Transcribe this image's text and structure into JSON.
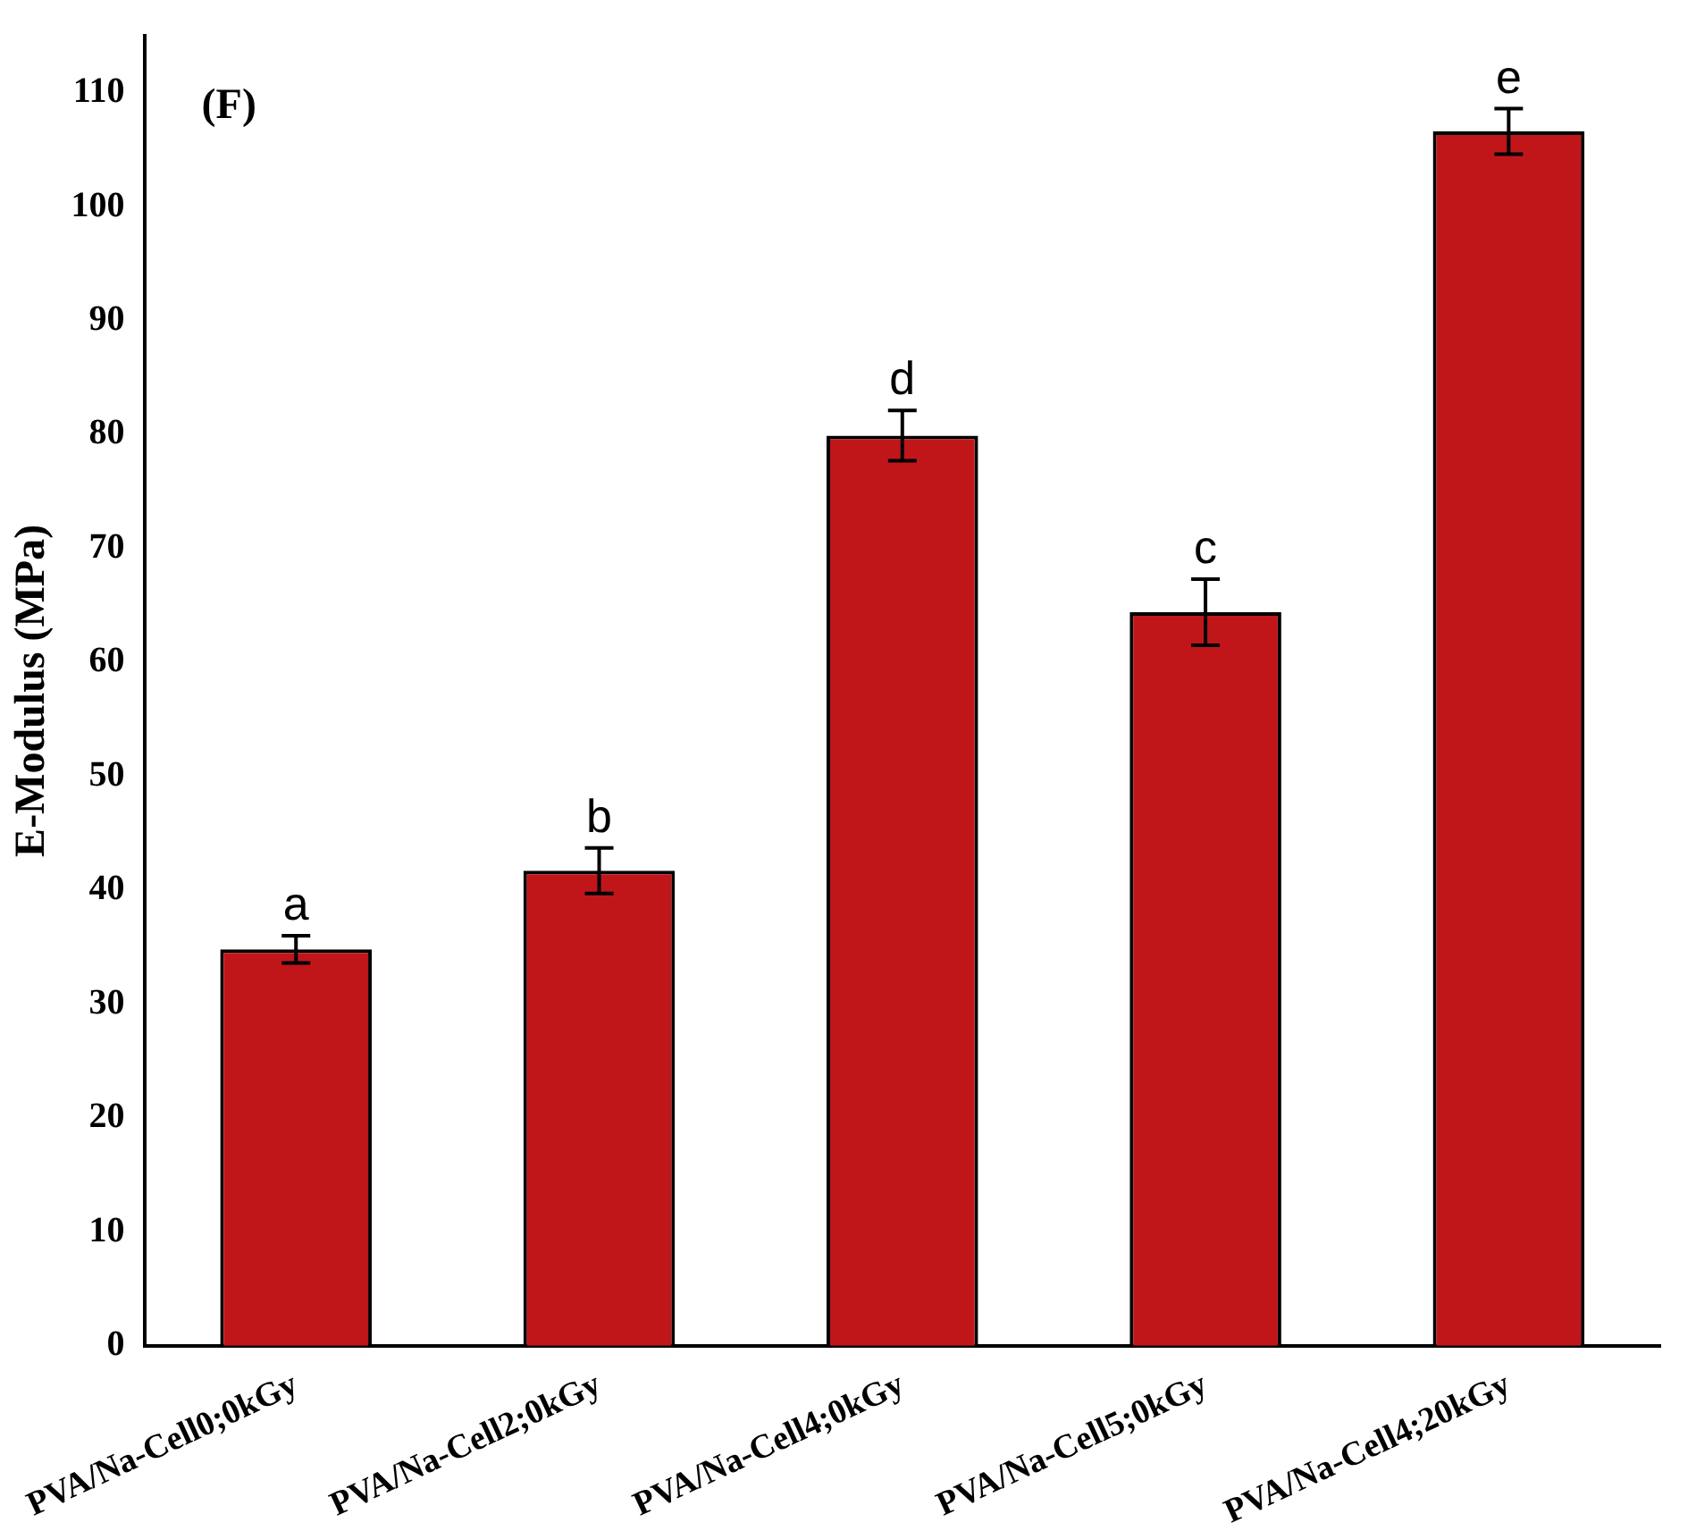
{
  "chart_data": {
    "type": "bar",
    "ylabel": "E-Modulus (MPa)",
    "categories": [
      "PVA/Na-Cell0;0kGy",
      "PVA/Na-Cell2;0kGy",
      "PVA/Na-Cell4;0kGy",
      "PVA/Na-Cell5;0kGy",
      "PVA/Na-Cell4;20kGy"
    ],
    "values": [
      34.8,
      41.7,
      79.9,
      64.4,
      106.6
    ],
    "errors": [
      1.2,
      2,
      2.2,
      2.9,
      2
    ],
    "color": "#c0161a",
    "ylim": [
      0,
      115
    ],
    "yticks": [
      0,
      10,
      20,
      30,
      40,
      50,
      60,
      70,
      80,
      90,
      100,
      110
    ],
    "grid": false,
    "legend": false,
    "annotations": [
      "(F)",
      {
        "text": "a",
        "x": "PVA/Na-Cell0;0kGy",
        "y": 36.5
      },
      {
        "text": "b",
        "x": "PVA/Na-Cell2;0kGy",
        "y": 44.2
      },
      {
        "text": "d",
        "x": "PVA/Na-Cell4;0kGy",
        "y": 82.6
      },
      {
        "text": "c",
        "x": "PVA/Na-Cell5;0kGy",
        "y": 67.8
      },
      {
        "text": "e",
        "x": "PVA/Na-Cell4;20kGy",
        "y": 109.1
      }
    ]
  }
}
